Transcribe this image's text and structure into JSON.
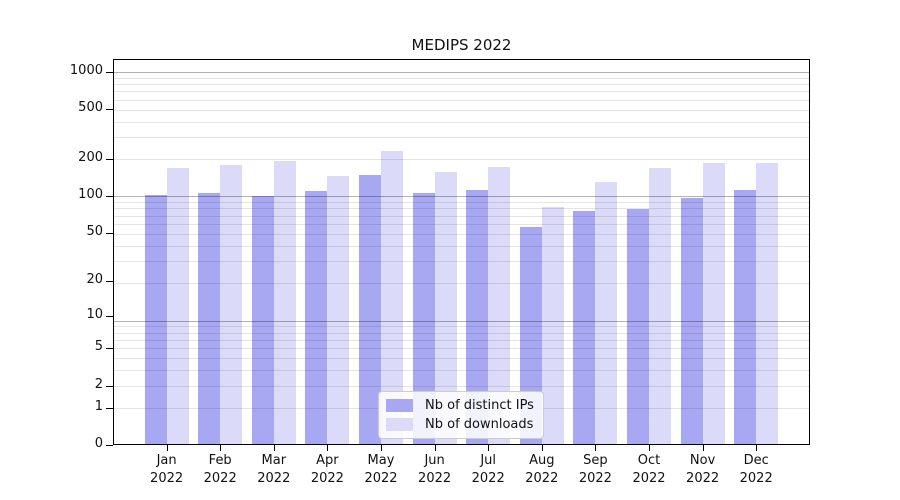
{
  "chart_data": {
    "type": "bar",
    "title": "MEDIPS 2022",
    "x_months": [
      "Jan",
      "Feb",
      "Mar",
      "Apr",
      "May",
      "Jun",
      "Jul",
      "Aug",
      "Sep",
      "Oct",
      "Nov",
      "Dec"
    ],
    "x_year": "2022",
    "series": [
      {
        "name": "Nb of distinct IPs",
        "color": "#a8a8f2",
        "values": [
          102,
          106,
          100,
          109,
          147,
          106,
          112,
          56,
          76,
          78,
          96,
          111
        ]
      },
      {
        "name": "Nb of downloads",
        "color": "#dbdbf9",
        "values": [
          167,
          177,
          191,
          144,
          232,
          155,
          171,
          82,
          129,
          168,
          184,
          186
        ]
      }
    ],
    "y_scale": "log1p",
    "y_ticks": [
      0,
      1,
      2,
      5,
      10,
      20,
      50,
      100,
      200,
      500,
      1000
    ],
    "ylim": [
      0,
      1200
    ],
    "grid": true,
    "legend_position": "bottom-center"
  },
  "colors": {
    "background": "#ffffff",
    "axis": "#000000",
    "text": "#111111",
    "legend_border": "#cccccc"
  }
}
